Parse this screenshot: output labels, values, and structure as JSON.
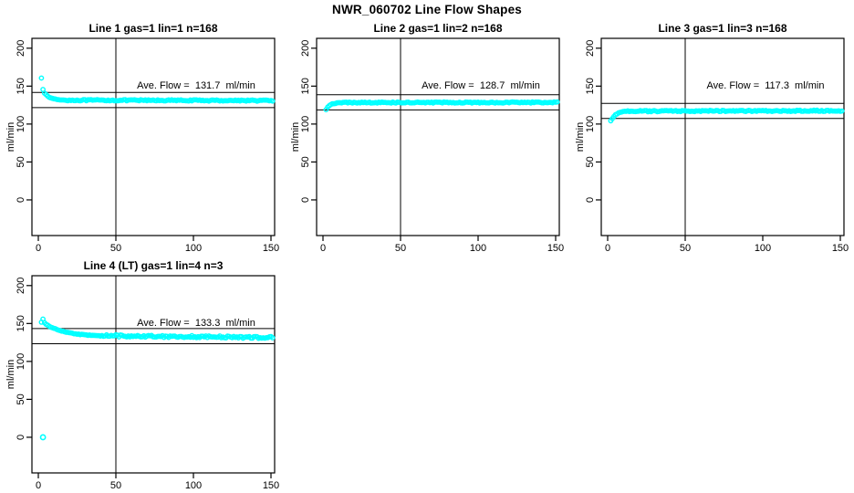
{
  "figure_title": "NWR_060702  Line Flow Shapes",
  "colors": {
    "marker": "#00FFFF",
    "axis": "#000000",
    "background": "#FFFFFF"
  },
  "axes": {
    "ylabel": "ml/min",
    "x_ticks": [
      0,
      50,
      100,
      150
    ],
    "y_ticks": [
      0,
      50,
      100,
      150,
      200
    ],
    "vline_x": 50,
    "xlim": [
      -4,
      153
    ],
    "ylim": [
      -47,
      213
    ],
    "grid": false
  },
  "chart_data": [
    {
      "type": "scatter",
      "title": "Line 1 gas=1 lin=1 n=168",
      "annotation": "Ave. Flow =  131.7  ml/min",
      "ave_flow_ml_min": 131.7,
      "n": 168,
      "ref_lines": [
        141.7,
        121.7
      ],
      "x_range": [
        2,
        151
      ],
      "transient_points": [
        [
          2,
          161
        ],
        [
          3,
          146
        ],
        [
          4,
          141
        ],
        [
          5,
          138.5
        ],
        [
          6,
          136.5
        ],
        [
          8,
          134.5
        ],
        [
          10,
          133.2
        ],
        [
          12,
          132.4
        ],
        [
          15,
          131.8
        ],
        [
          18,
          131.5
        ]
      ],
      "steady": {
        "from_x": 19,
        "level": 131.4,
        "end_level": 131.0,
        "jitter": 0.8
      },
      "outliers": []
    },
    {
      "type": "scatter",
      "title": "Line 2 gas=1 lin=2 n=168",
      "annotation": "Ave. Flow =  128.7  ml/min",
      "ave_flow_ml_min": 128.7,
      "n": 168,
      "ref_lines": [
        138.7,
        118.7
      ],
      "x_range": [
        2,
        151
      ],
      "transient_points": [
        [
          2,
          119
        ],
        [
          3,
          122.5
        ],
        [
          4,
          124.5
        ],
        [
          5,
          125.8
        ],
        [
          6,
          126.6
        ],
        [
          8,
          127.4
        ],
        [
          10,
          127.8
        ],
        [
          12,
          128.1
        ]
      ],
      "steady": {
        "from_x": 13,
        "level": 128.3,
        "end_level": 128.5,
        "jitter": 0.7
      },
      "outliers": []
    },
    {
      "type": "scatter",
      "title": "Line 3 gas=1 lin=3 n=168",
      "annotation": "Ave. Flow =  117.3  ml/min",
      "ave_flow_ml_min": 117.3,
      "n": 168,
      "ref_lines": [
        127.3,
        107.3
      ],
      "x_range": [
        2,
        151
      ],
      "transient_points": [
        [
          2,
          104
        ],
        [
          3,
          107.5
        ],
        [
          4,
          110
        ],
        [
          5,
          112
        ],
        [
          6,
          113.5
        ],
        [
          8,
          115.2
        ],
        [
          10,
          116.2
        ],
        [
          12,
          116.8
        ]
      ],
      "steady": {
        "from_x": 13,
        "level": 117.0,
        "end_level": 117.5,
        "jitter": 0.8
      },
      "outliers": []
    },
    {
      "type": "scatter",
      "title": "Line 4 (LT) gas=1 lin=4 n=3",
      "annotation": "Ave. Flow =  133.3  ml/min",
      "ave_flow_ml_min": 133.3,
      "n": 3,
      "ref_lines": [
        143.3,
        123.3
      ],
      "x_range": [
        2,
        151
      ],
      "transient_points": [
        [
          2,
          152
        ],
        [
          3,
          156
        ],
        [
          4,
          151
        ],
        [
          5,
          149
        ],
        [
          6,
          147.5
        ],
        [
          8,
          145.5
        ],
        [
          10,
          143.8
        ],
        [
          12,
          142.2
        ],
        [
          14,
          140.8
        ],
        [
          16,
          139.6
        ],
        [
          18,
          138.6
        ],
        [
          20,
          137.8
        ],
        [
          23,
          136.6
        ],
        [
          26,
          135.8
        ],
        [
          30,
          135
        ],
        [
          34,
          134.4
        ],
        [
          38,
          134
        ]
      ],
      "steady": {
        "from_x": 39,
        "level": 134.0,
        "end_level": 131.5,
        "jitter": 1.4
      },
      "outliers": [
        [
          3,
          0
        ]
      ]
    }
  ]
}
